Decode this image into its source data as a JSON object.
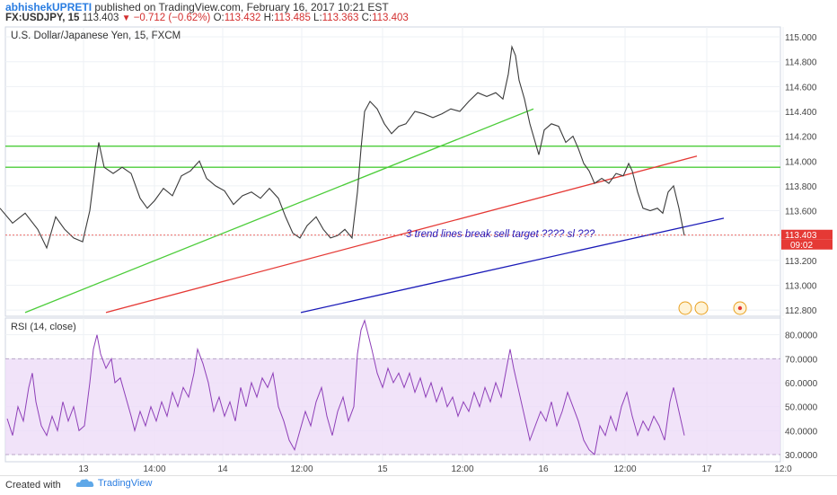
{
  "header": {
    "author": "abhishekUPRETI",
    "published": "published on TradingView.com, February 16, 2017 10:21 EST",
    "symbol": "FX:USDJPY, 15",
    "last": "113.403",
    "change": "−0.712 (−0.62%)",
    "o_label": "O:",
    "o_value": "113.432",
    "h_label": "H:",
    "h_value": "113.485",
    "l_label": "L:",
    "l_value": "113.363",
    "c_label": "C:",
    "c_value": "113.403"
  },
  "footer": {
    "created": "Created with",
    "brand": "TradingView"
  },
  "chart_data": [
    {
      "type": "line",
      "title": "U.S. Dollar/Japanese Yen, 15, FXCM",
      "y_ticks": [
        "115.000",
        "114.800",
        "114.600",
        "114.400",
        "114.200",
        "114.000",
        "113.800",
        "113.600",
        "113.400",
        "113.200",
        "113.000",
        "112.800"
      ],
      "ylim": [
        112.75,
        115.08
      ],
      "x_ticks": [
        "13",
        "14:00",
        "14",
        "12:00",
        "15",
        "12:00",
        "16",
        "12:00",
        "17",
        "12:0"
      ],
      "price_line": [
        [
          0,
          113.62
        ],
        [
          14,
          113.5
        ],
        [
          28,
          113.58
        ],
        [
          42,
          113.45
        ],
        [
          52,
          113.3
        ],
        [
          62,
          113.55
        ],
        [
          72,
          113.45
        ],
        [
          82,
          113.38
        ],
        [
          92,
          113.35
        ],
        [
          100,
          113.6
        ],
        [
          106,
          113.95
        ],
        [
          110,
          114.15
        ],
        [
          116,
          113.95
        ],
        [
          126,
          113.9
        ],
        [
          136,
          113.95
        ],
        [
          146,
          113.9
        ],
        [
          156,
          113.7
        ],
        [
          164,
          113.62
        ],
        [
          172,
          113.68
        ],
        [
          182,
          113.78
        ],
        [
          192,
          113.72
        ],
        [
          202,
          113.88
        ],
        [
          212,
          113.92
        ],
        [
          222,
          114.0
        ],
        [
          230,
          113.86
        ],
        [
          240,
          113.8
        ],
        [
          250,
          113.76
        ],
        [
          260,
          113.65
        ],
        [
          270,
          113.72
        ],
        [
          280,
          113.75
        ],
        [
          290,
          113.7
        ],
        [
          300,
          113.78
        ],
        [
          310,
          113.7
        ],
        [
          318,
          113.55
        ],
        [
          326,
          113.42
        ],
        [
          334,
          113.38
        ],
        [
          342,
          113.48
        ],
        [
          352,
          113.55
        ],
        [
          360,
          113.45
        ],
        [
          368,
          113.38
        ],
        [
          376,
          113.4
        ],
        [
          384,
          113.45
        ],
        [
          392,
          113.38
        ],
        [
          398,
          113.75
        ],
        [
          402,
          114.1
        ],
        [
          406,
          114.4
        ],
        [
          412,
          114.48
        ],
        [
          420,
          114.42
        ],
        [
          428,
          114.3
        ],
        [
          436,
          114.22
        ],
        [
          444,
          114.28
        ],
        [
          452,
          114.3
        ],
        [
          462,
          114.4
        ],
        [
          472,
          114.38
        ],
        [
          482,
          114.35
        ],
        [
          492,
          114.38
        ],
        [
          502,
          114.42
        ],
        [
          512,
          114.4
        ],
        [
          522,
          114.48
        ],
        [
          532,
          114.55
        ],
        [
          542,
          114.52
        ],
        [
          552,
          114.55
        ],
        [
          560,
          114.5
        ],
        [
          566,
          114.7
        ],
        [
          570,
          114.92
        ],
        [
          574,
          114.85
        ],
        [
          578,
          114.65
        ],
        [
          584,
          114.5
        ],
        [
          590,
          114.3
        ],
        [
          596,
          114.15
        ],
        [
          600,
          114.05
        ],
        [
          606,
          114.25
        ],
        [
          614,
          114.3
        ],
        [
          622,
          114.28
        ],
        [
          630,
          114.15
        ],
        [
          638,
          114.2
        ],
        [
          644,
          114.1
        ],
        [
          650,
          113.98
        ],
        [
          656,
          113.92
        ],
        [
          662,
          113.82
        ],
        [
          670,
          113.86
        ],
        [
          678,
          113.82
        ],
        [
          686,
          113.9
        ],
        [
          694,
          113.88
        ],
        [
          700,
          113.98
        ],
        [
          704,
          113.92
        ],
        [
          710,
          113.75
        ],
        [
          716,
          113.62
        ],
        [
          724,
          113.6
        ],
        [
          732,
          113.62
        ],
        [
          738,
          113.58
        ],
        [
          744,
          113.75
        ],
        [
          750,
          113.8
        ],
        [
          756,
          113.62
        ],
        [
          762,
          113.4
        ]
      ],
      "horizontal_lines": [
        114.12,
        113.95
      ],
      "current_price_line": 113.403,
      "trend_lines": [
        {
          "color": "#4ccd3a",
          "from": [
            28,
            112.78
          ],
          "to": [
            594,
            114.42
          ]
        },
        {
          "color": "#e53935",
          "from": [
            118,
            112.78
          ],
          "to": [
            776,
            114.04
          ]
        },
        {
          "color": "#1a1ab8",
          "from": [
            335,
            112.78
          ],
          "to": [
            806,
            113.54
          ]
        }
      ],
      "annotation": "3 trend lines break sell target ???? sl ???",
      "price_label": "113.403",
      "countdown_label": "09:02"
    },
    {
      "type": "line",
      "title": "RSI (14, close)",
      "y_ticks": [
        "80.0000",
        "70.0000",
        "60.0000",
        "50.0000",
        "40.0000",
        "30.0000"
      ],
      "ylim": [
        27,
        87
      ],
      "band": [
        30,
        70
      ],
      "rsi_line": [
        [
          8,
          45
        ],
        [
          14,
          38
        ],
        [
          20,
          50
        ],
        [
          26,
          44
        ],
        [
          32,
          58
        ],
        [
          36,
          64
        ],
        [
          40,
          52
        ],
        [
          46,
          42
        ],
        [
          52,
          38
        ],
        [
          58,
          46
        ],
        [
          64,
          40
        ],
        [
          70,
          52
        ],
        [
          76,
          44
        ],
        [
          82,
          50
        ],
        [
          88,
          40
        ],
        [
          94,
          42
        ],
        [
          100,
          60
        ],
        [
          104,
          74
        ],
        [
          108,
          80
        ],
        [
          112,
          72
        ],
        [
          118,
          66
        ],
        [
          124,
          70
        ],
        [
          128,
          60
        ],
        [
          134,
          62
        ],
        [
          140,
          54
        ],
        [
          146,
          46
        ],
        [
          150,
          40
        ],
        [
          156,
          48
        ],
        [
          162,
          42
        ],
        [
          168,
          50
        ],
        [
          174,
          44
        ],
        [
          180,
          52
        ],
        [
          186,
          46
        ],
        [
          192,
          56
        ],
        [
          198,
          50
        ],
        [
          204,
          58
        ],
        [
          210,
          54
        ],
        [
          216,
          64
        ],
        [
          220,
          74
        ],
        [
          226,
          68
        ],
        [
          232,
          60
        ],
        [
          238,
          48
        ],
        [
          244,
          54
        ],
        [
          250,
          46
        ],
        [
          256,
          52
        ],
        [
          262,
          44
        ],
        [
          268,
          58
        ],
        [
          274,
          50
        ],
        [
          280,
          60
        ],
        [
          286,
          54
        ],
        [
          292,
          62
        ],
        [
          298,
          58
        ],
        [
          304,
          64
        ],
        [
          310,
          50
        ],
        [
          316,
          44
        ],
        [
          322,
          36
        ],
        [
          328,
          32
        ],
        [
          334,
          40
        ],
        [
          340,
          48
        ],
        [
          346,
          42
        ],
        [
          352,
          52
        ],
        [
          358,
          58
        ],
        [
          364,
          46
        ],
        [
          370,
          38
        ],
        [
          376,
          48
        ],
        [
          382,
          54
        ],
        [
          388,
          44
        ],
        [
          394,
          50
        ],
        [
          398,
          72
        ],
        [
          402,
          82
        ],
        [
          406,
          86
        ],
        [
          410,
          80
        ],
        [
          414,
          74
        ],
        [
          420,
          64
        ],
        [
          426,
          58
        ],
        [
          432,
          66
        ],
        [
          438,
          60
        ],
        [
          444,
          64
        ],
        [
          450,
          58
        ],
        [
          456,
          64
        ],
        [
          462,
          56
        ],
        [
          468,
          62
        ],
        [
          474,
          54
        ],
        [
          480,
          60
        ],
        [
          486,
          52
        ],
        [
          492,
          58
        ],
        [
          498,
          50
        ],
        [
          504,
          54
        ],
        [
          510,
          46
        ],
        [
          516,
          52
        ],
        [
          522,
          48
        ],
        [
          528,
          56
        ],
        [
          534,
          50
        ],
        [
          540,
          58
        ],
        [
          546,
          52
        ],
        [
          552,
          60
        ],
        [
          558,
          54
        ],
        [
          564,
          66
        ],
        [
          568,
          74
        ],
        [
          572,
          66
        ],
        [
          578,
          56
        ],
        [
          584,
          46
        ],
        [
          590,
          36
        ],
        [
          596,
          42
        ],
        [
          602,
          48
        ],
        [
          608,
          44
        ],
        [
          614,
          52
        ],
        [
          620,
          42
        ],
        [
          626,
          48
        ],
        [
          632,
          56
        ],
        [
          638,
          50
        ],
        [
          644,
          44
        ],
        [
          650,
          36
        ],
        [
          656,
          32
        ],
        [
          662,
          30
        ],
        [
          668,
          42
        ],
        [
          674,
          38
        ],
        [
          680,
          46
        ],
        [
          686,
          40
        ],
        [
          692,
          50
        ],
        [
          698,
          56
        ],
        [
          704,
          46
        ],
        [
          710,
          38
        ],
        [
          716,
          44
        ],
        [
          722,
          40
        ],
        [
          728,
          46
        ],
        [
          734,
          42
        ],
        [
          740,
          36
        ],
        [
          746,
          52
        ],
        [
          750,
          58
        ],
        [
          756,
          48
        ],
        [
          762,
          38
        ]
      ]
    }
  ]
}
